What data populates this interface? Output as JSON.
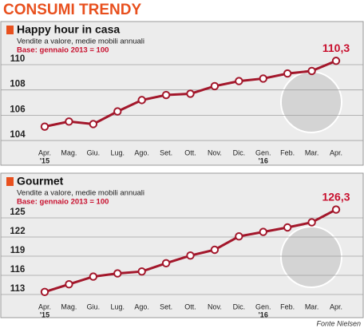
{
  "title": "CONSUMI TRENDY",
  "source": "Fonte Nielsen",
  "chart_data": [
    {
      "type": "line",
      "title": "Happy hour in casa",
      "subtitle": "Vendite a valore, medie mobili annuali",
      "note": "Base: gennaio 2013 = 100",
      "categories": [
        "Apr.",
        "Mag.",
        "Giu.",
        "Lug.",
        "Ago.",
        "Set.",
        "Ott.",
        "Nov.",
        "Dic.",
        "Gen.",
        "Feb.",
        "Mar.",
        "Apr."
      ],
      "category_years": [
        "'15",
        null,
        null,
        null,
        null,
        null,
        null,
        null,
        null,
        "'16",
        null,
        null,
        null
      ],
      "values": [
        105.1,
        105.5,
        105.3,
        106.3,
        107.2,
        107.6,
        107.7,
        108.3,
        108.7,
        108.9,
        109.3,
        109.5,
        110.3
      ],
      "value_labels": [
        null,
        null,
        null,
        null,
        null,
        null,
        null,
        null,
        null,
        null,
        null,
        null,
        "110,3"
      ],
      "color": "#a3172b",
      "ylim": [
        103.5,
        111.2
      ],
      "yticks": [
        104,
        106,
        108,
        110
      ],
      "grid": true
    },
    {
      "type": "line",
      "title": "Gourmet",
      "subtitle": "Vendite a valore, medie mobili annuali",
      "note": "Base: gennaio 2013 = 100",
      "categories": [
        "Apr.",
        "Mag.",
        "Giu.",
        "Lug.",
        "Ago.",
        "Set.",
        "Ott.",
        "Nov.",
        "Dic.",
        "Gen.",
        "Feb.",
        "Mar.",
        "Apr."
      ],
      "category_years": [
        "'15",
        null,
        null,
        null,
        null,
        null,
        null,
        null,
        null,
        "'16",
        null,
        null,
        null
      ],
      "values": [
        113.4,
        114.6,
        115.8,
        116.3,
        116.6,
        117.9,
        119.1,
        120.0,
        122.1,
        122.8,
        123.5,
        124.3,
        126.3
      ],
      "value_labels": [
        null,
        null,
        null,
        null,
        null,
        null,
        null,
        null,
        null,
        null,
        null,
        null,
        "126,3"
      ],
      "color": "#a3172b",
      "ylim": [
        112,
        127
      ],
      "yticks": [
        113,
        116,
        119,
        122,
        125
      ],
      "grid": true
    }
  ]
}
